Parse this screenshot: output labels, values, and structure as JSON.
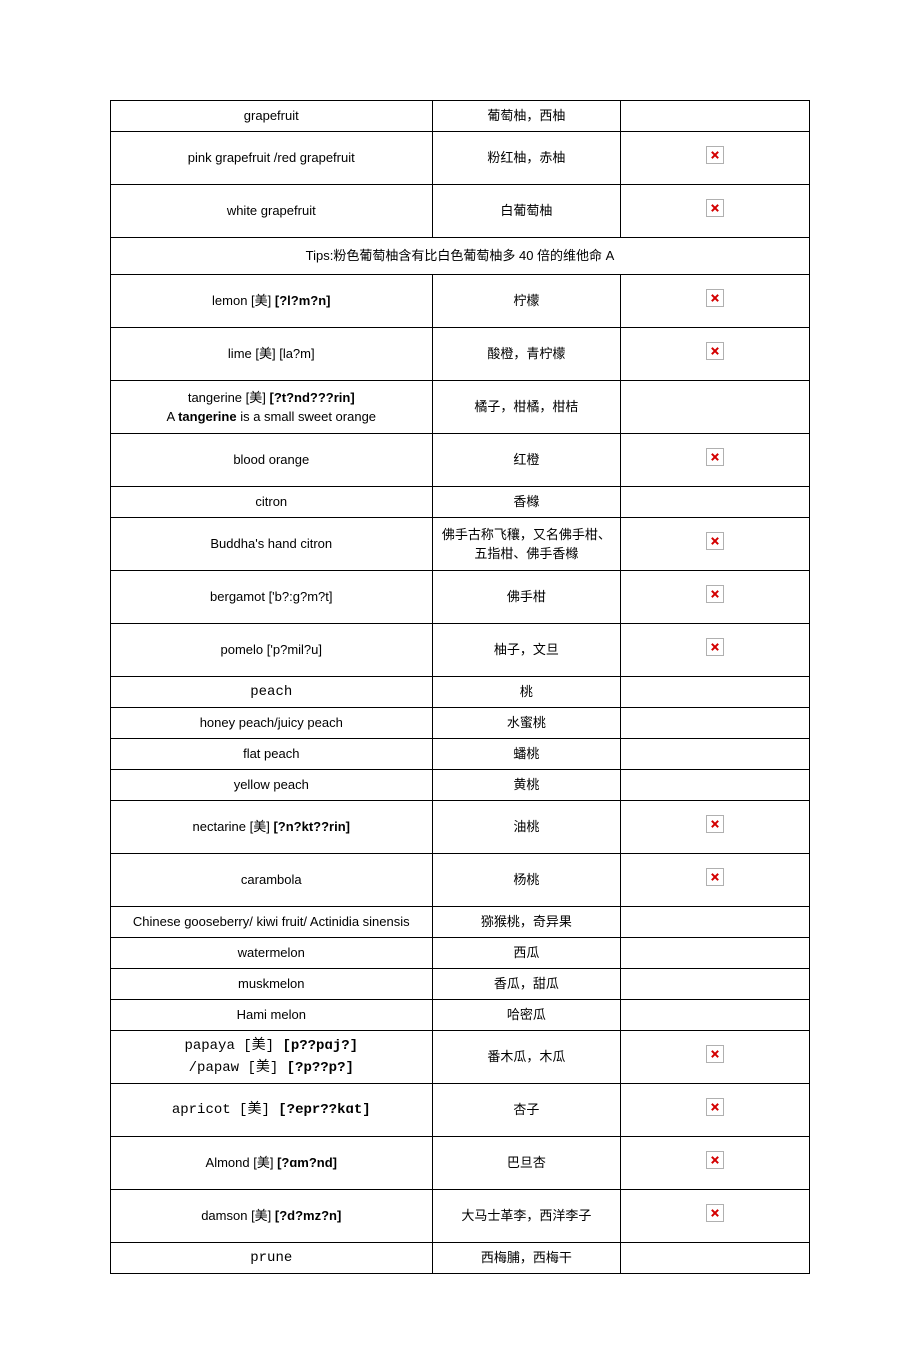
{
  "tips_row": "Tips:粉色葡萄柚含有比白色葡萄柚多 40 倍的维他命 A",
  "rows": [
    {
      "en": "grapefruit",
      "cn": "葡萄柚，西柚",
      "img": false,
      "h": "short",
      "en_html": false
    },
    {
      "en": "pink grapefruit /red grapefruit",
      "cn": "粉红柚，赤柚",
      "img": true,
      "h": "tall",
      "en_html": false
    },
    {
      "en": "white grapefruit",
      "cn": "白葡萄柚",
      "img": true,
      "h": "tall",
      "en_html": false
    },
    {
      "tips": true
    },
    {
      "en": "lemon [美] <span class='bold'>[?l?m?n]</span>",
      "cn": "柠檬",
      "img": true,
      "h": "tall",
      "en_html": true
    },
    {
      "en": "lime [美] [la?m]",
      "cn": "酸橙，青柠檬",
      "img": true,
      "h": "tall",
      "en_html": false
    },
    {
      "en": "tangerine [美] <span class='bold'>[?t?nd???rin]</span><br>A <span class='bold'>tangerine</span> is a small sweet orange",
      "cn": "橘子，柑橘，柑桔",
      "img": false,
      "h": "tall",
      "en_html": true
    },
    {
      "en": "blood orange",
      "cn": "红橙",
      "img": true,
      "h": "tall",
      "en_html": false
    },
    {
      "en": "citron",
      "cn": "香橼",
      "img": false,
      "h": "short",
      "en_html": false
    },
    {
      "en": "Buddha's hand citron",
      "cn": "佛手古称飞穰，又名佛手柑、五指柑、佛手香橼",
      "img": true,
      "h": "tall",
      "en_html": false
    },
    {
      "en": "bergamot ['b?:g?m?t]",
      "cn": "佛手柑",
      "img": true,
      "h": "tall",
      "en_html": false
    },
    {
      "en": "pomelo ['p?mil?u]",
      "cn": "柚子，文旦",
      "img": true,
      "h": "tall",
      "en_html": false
    },
    {
      "en": "<span class='mono'>peach</span>",
      "cn": "桃",
      "img": false,
      "h": "short",
      "en_html": true
    },
    {
      "en": "honey peach/juicy peach",
      "cn": "水蜜桃",
      "img": false,
      "h": "short",
      "en_html": false
    },
    {
      "en": "flat peach",
      "cn": "蟠桃",
      "img": false,
      "h": "short",
      "en_html": false
    },
    {
      "en": "yellow peach",
      "cn": "黄桃",
      "img": false,
      "h": "short",
      "en_html": false
    },
    {
      "en": "nectarine [美] <span class='bold'>[?n?kt??rin]</span>",
      "cn": "油桃",
      "img": true,
      "h": "tall",
      "en_html": true
    },
    {
      "en": "carambola",
      "cn": "杨桃",
      "img": true,
      "h": "tall",
      "en_html": false
    },
    {
      "en": "Chinese gooseberry/ kiwi fruit/ Actinidia sinensis",
      "cn": "猕猴桃，奇异果",
      "img": false,
      "h": "short",
      "en_html": false
    },
    {
      "en": "watermelon",
      "cn": "西瓜",
      "img": false,
      "h": "short",
      "en_html": false
    },
    {
      "en": "muskmelon",
      "cn": "香瓜，甜瓜",
      "img": false,
      "h": "short",
      "en_html": false
    },
    {
      "en": "Hami melon",
      "cn": "哈密瓜",
      "img": false,
      "h": "short",
      "en_html": false
    },
    {
      "en": "<span class='mono'>papaya [美] <span class='bold'>[p??pɑj?]</span><br>/papaw [美] <span class='bold'>[?p??p?]</span></span>",
      "cn": "番木瓜，木瓜",
      "img": true,
      "h": "tall",
      "en_html": true
    },
    {
      "en": "<span class='mono'>apricot [美] <span class='bold'>[?epr??kɑt]</span></span>",
      "cn": "杏子",
      "img": true,
      "h": "tall",
      "en_html": true
    },
    {
      "en": "Almond [美] <span class='bold'>[?ɑm?nd]</span>",
      "cn": "巴旦杏",
      "img": true,
      "h": "tall",
      "en_html": true
    },
    {
      "en": "damson [美] <span class='bold'>[?d?mz?n]</span>",
      "cn": "大马士革李，西洋李子",
      "img": true,
      "h": "tall",
      "en_html": true
    },
    {
      "en": "<span class='mono'>prune</span>",
      "cn": "西梅脯，西梅干",
      "img": false,
      "h": "short",
      "en_html": true
    }
  ]
}
